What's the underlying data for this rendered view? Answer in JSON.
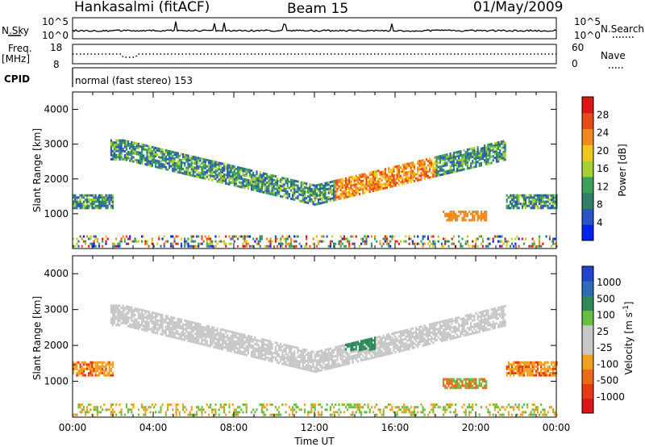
{
  "header": {
    "station": "Hankasalmi (fitACF)",
    "beam": "Beam 15",
    "date": "01/May/2009"
  },
  "status_panel": {
    "left_label_top": "N.Sky",
    "left_label_freq_1": "Freq.",
    "left_label_freq_2": "[MHz]",
    "left_label_cpid": "CPID",
    "right_label_top": "N.Search",
    "right_label_nave": "Nave",
    "nsky_ticks": [
      "10^5",
      "10^0"
    ],
    "freq_ticks": [
      "18",
      "8"
    ],
    "nave_ticks": [
      "60",
      "0"
    ],
    "cpid_text": "normal (fast stereo) 153"
  },
  "colors": {
    "power": [
      "#0022ee",
      "#2a55c4",
      "#2f7f6a",
      "#3aa05a",
      "#a8cf30",
      "#f0c81a",
      "#f08a1e",
      "#e84a1a",
      "#dd1515"
    ],
    "velocity": [
      "#2244cc",
      "#2c6db8",
      "#2f8a5a",
      "#63c040",
      "#c8c8c8",
      "#c8c8c8",
      "#f0a020",
      "#ee6a18",
      "#e63a15",
      "#dd1515"
    ]
  },
  "chart_data": [
    {
      "type": "heatmap",
      "quantity": "Power",
      "x_ticks": [
        "00:00",
        "04:00",
        "08:00",
        "12:00",
        "16:00",
        "20:00",
        "00:00"
      ],
      "xlim_hours": [
        0,
        24
      ],
      "ylabel": "Slant Range [km]",
      "ylim": [
        0,
        4500
      ],
      "y_ticks": [
        1000,
        2000,
        3000,
        4000
      ],
      "colorbar_label": "Power [dB]",
      "colorbar_ticks": [
        4,
        8,
        12,
        16,
        20,
        24,
        28
      ]
    },
    {
      "type": "heatmap",
      "quantity": "Velocity",
      "xlabel": "Time UT",
      "x_ticks": [
        "00:00",
        "04:00",
        "08:00",
        "12:00",
        "16:00",
        "20:00",
        "00:00"
      ],
      "xlim_hours": [
        0,
        24
      ],
      "ylabel": "Slant Range [km]",
      "ylim": [
        0,
        4500
      ],
      "y_ticks": [
        1000,
        2000,
        3000,
        4000
      ],
      "colorbar_label": "Velocity [m s^-1]",
      "colorbar_ticks": [
        1000,
        500,
        100,
        25,
        -25,
        -100,
        -500,
        -1000
      ]
    }
  ]
}
